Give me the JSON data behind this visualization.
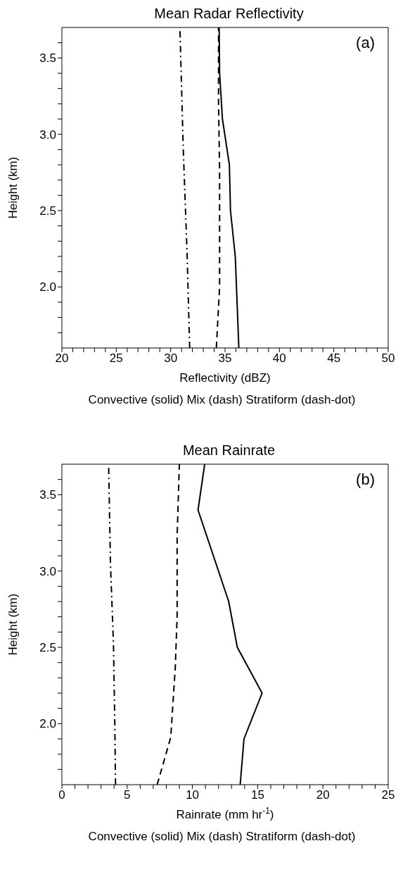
{
  "chart_data": [
    {
      "type": "line",
      "title": "Mean Radar Reflectivity",
      "xlabel": "Reflectivity (dBZ)",
      "ylabel": "Height (km)",
      "annotations": [
        "(a)",
        "Convective (solid) Mix (dash) Stratiform (dash-dot)"
      ],
      "xlim": [
        20,
        50
      ],
      "ylim": [
        1.6,
        3.7
      ],
      "xticks": [
        20,
        {
          "value": 21,
          "label": null
        },
        {
          "value": 22,
          "label": null
        },
        {
          "value": 23,
          "label": null
        },
        {
          "value": 24,
          "label": null
        },
        25,
        {
          "value": 26,
          "label": null
        },
        {
          "value": 27,
          "label": null
        },
        {
          "value": 28,
          "label": null
        },
        {
          "value": 29,
          "label": null
        },
        30,
        {
          "value": 31,
          "label": null
        },
        {
          "value": 32,
          "label": null
        },
        {
          "value": 33,
          "label": null
        },
        {
          "value": 34,
          "label": null
        },
        35,
        {
          "value": 36,
          "label": null
        },
        {
          "value": 37,
          "label": null
        },
        {
          "value": 38,
          "label": null
        },
        {
          "value": 39,
          "label": null
        },
        40,
        {
          "value": 41,
          "label": null
        },
        {
          "value": 42,
          "label": null
        },
        {
          "value": 43,
          "label": null
        },
        {
          "value": 44,
          "label": null
        },
        45,
        {
          "value": 46,
          "label": null
        },
        {
          "value": 47,
          "label": null
        },
        {
          "value": 48,
          "label": null
        },
        {
          "value": 49,
          "label": null
        },
        50
      ],
      "yticks": [
        {
          "value": 1.7,
          "label": null
        },
        {
          "value": 1.8,
          "label": null
        },
        {
          "value": 1.9,
          "label": null
        },
        {
          "value": 2,
          "label": "2.0"
        },
        {
          "value": 2.1,
          "label": null
        },
        {
          "value": 2.2,
          "label": null
        },
        {
          "value": 2.3,
          "label": null
        },
        {
          "value": 2.4,
          "label": null
        },
        {
          "value": 2.5,
          "label": "2.5"
        },
        {
          "value": 2.6,
          "label": null
        },
        {
          "value": 2.7,
          "label": null
        },
        {
          "value": 2.8,
          "label": null
        },
        {
          "value": 2.9,
          "label": null
        },
        {
          "value": 3,
          "label": "3.0"
        },
        {
          "value": 3.1,
          "label": null
        },
        {
          "value": 3.2,
          "label": null
        },
        {
          "value": 3.3,
          "label": null
        },
        {
          "value": 3.4,
          "label": null
        },
        {
          "value": 3.5,
          "label": "3.5"
        },
        {
          "value": 3.6,
          "label": null
        }
      ],
      "series": [
        {
          "color": "#000000",
          "line_style": "solid",
          "x": [
            36.27,
            35.94,
            35.5,
            35.4,
            34.76,
            34.5,
            34.46
          ],
          "values": [
            1.6,
            2.2,
            2.5,
            2.8,
            3.1,
            3.4,
            3.7
          ]
        },
        {
          "color": "#000000",
          "line_style": "dashed",
          "x": [
            34.2,
            34.5,
            34.5,
            34.4,
            34.4
          ],
          "values": [
            1.6,
            2.0,
            2.77,
            3.2,
            3.7
          ]
        },
        {
          "color": "#000000",
          "line_style": "dashdot",
          "x": [
            31.75,
            31.5,
            31.16,
            30.85
          ],
          "values": [
            1.6,
            2.24,
            2.9,
            3.7
          ]
        }
      ]
    },
    {
      "type": "line",
      "title": "Mean Rainrate",
      "xlabel": "Rainrate (mm hr$^{-1}$)",
      "ylabel": "Height (km)",
      "annotations": [
        "(b)",
        "Convective (solid) Mix (dash) Stratiform (dash-dot)"
      ],
      "xlim": [
        0,
        25
      ],
      "ylim": [
        1.6,
        3.7
      ],
      "xticks": [
        0,
        {
          "value": 1,
          "label": null
        },
        {
          "value": 2,
          "label": null
        },
        {
          "value": 3,
          "label": null
        },
        {
          "value": 4,
          "label": null
        },
        5,
        {
          "value": 6,
          "label": null
        },
        {
          "value": 7,
          "label": null
        },
        {
          "value": 8,
          "label": null
        },
        {
          "value": 9,
          "label": null
        },
        10,
        {
          "value": 11,
          "label": null
        },
        {
          "value": 12,
          "label": null
        },
        {
          "value": 13,
          "label": null
        },
        {
          "value": 14,
          "label": null
        },
        15,
        {
          "value": 16,
          "label": null
        },
        {
          "value": 17,
          "label": null
        },
        {
          "value": 18,
          "label": null
        },
        {
          "value": 19,
          "label": null
        },
        20,
        {
          "value": 21,
          "label": null
        },
        {
          "value": 22,
          "label": null
        },
        {
          "value": 23,
          "label": null
        },
        {
          "value": 24,
          "label": null
        },
        25
      ],
      "yticks": [
        {
          "value": 1.7,
          "label": null
        },
        {
          "value": 1.8,
          "label": null
        },
        {
          "value": 1.9,
          "label": null
        },
        {
          "value": 2,
          "label": "2.0"
        },
        {
          "value": 2.1,
          "label": null
        },
        {
          "value": 2.2,
          "label": null
        },
        {
          "value": 2.3,
          "label": null
        },
        {
          "value": 2.4,
          "label": null
        },
        {
          "value": 2.5,
          "label": "2.5"
        },
        {
          "value": 2.6,
          "label": null
        },
        {
          "value": 2.7,
          "label": null
        },
        {
          "value": 2.8,
          "label": null
        },
        {
          "value": 2.9,
          "label": null
        },
        {
          "value": 3,
          "label": "3.0"
        },
        {
          "value": 3.1,
          "label": null
        },
        {
          "value": 3.2,
          "label": null
        },
        {
          "value": 3.3,
          "label": null
        },
        {
          "value": 3.4,
          "label": null
        },
        {
          "value": 3.5,
          "label": "3.5"
        },
        {
          "value": 3.6,
          "label": null
        }
      ],
      "series": [
        {
          "color": "#000000",
          "line_style": "solid",
          "x": [
            13.66,
            13.95,
            15.34,
            13.44,
            12.78,
            10.43,
            10.94
          ],
          "values": [
            1.6,
            1.9,
            2.2,
            2.5,
            2.8,
            3.4,
            3.7
          ]
        },
        {
          "color": "#000000",
          "line_style": "dashed",
          "x": [
            7.3,
            8.34,
            8.69,
            8.83,
            8.83,
            9.0
          ],
          "values": [
            1.6,
            1.91,
            2.37,
            2.71,
            3.23,
            3.7
          ]
        },
        {
          "color": "#000000",
          "line_style": "dashdot",
          "x": [
            4.11,
            4.05,
            3.95,
            3.72,
            3.58
          ],
          "values": [
            1.6,
            2.02,
            2.53,
            3.05,
            3.7
          ]
        }
      ]
    }
  ]
}
